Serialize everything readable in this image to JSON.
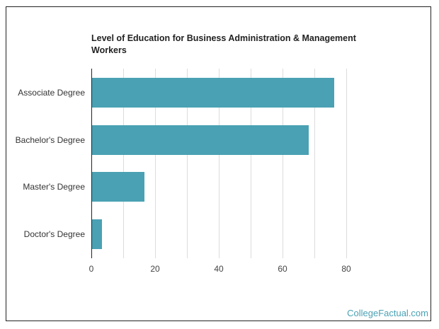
{
  "chart_data": {
    "type": "bar",
    "orientation": "horizontal",
    "title": "Level of Education for Business Administration & Management Workers",
    "categories": [
      "Associate Degree",
      "Bachelor's Degree",
      "Master's Degree",
      "Doctor's Degree"
    ],
    "values": [
      76,
      68,
      16.5,
      3
    ],
    "xlabel": "",
    "ylabel": "",
    "xlim": [
      0,
      80
    ],
    "x_ticks": [
      "0",
      "20",
      "40",
      "60",
      "80"
    ],
    "grid": true,
    "bar_color": "#4aa1b3"
  },
  "title_line1": "Level of Education for Business Administration & Management",
  "title_line2": "Workers",
  "branding": "CollegeFactual.com"
}
